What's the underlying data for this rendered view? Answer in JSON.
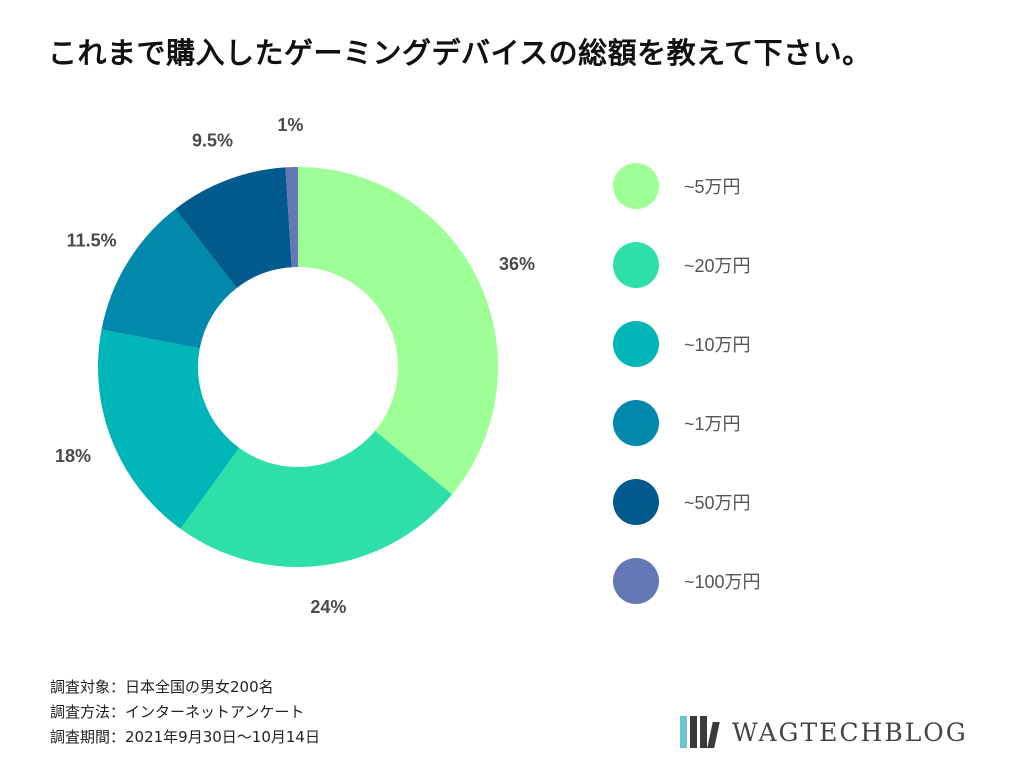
{
  "title": "これまで購入したゲーミングデバイスの総額を教えて下さい。",
  "chart_data": {
    "type": "pie",
    "style": "donut",
    "title": "これまで購入したゲーミングデバイスの総額を教えて下さい。",
    "slices": [
      {
        "label": "~5万円",
        "value": 36,
        "display": "36%",
        "color": "#9dff95"
      },
      {
        "label": "~20万円",
        "value": 24,
        "display": "24%",
        "color": "#2ee0a8"
      },
      {
        "label": "~10万円",
        "value": 18,
        "display": "18%",
        "color": "#00b5b8"
      },
      {
        "label": "~1万円",
        "value": 11.5,
        "display": "11.5%",
        "color": "#0088ad"
      },
      {
        "label": "~50万円",
        "value": 9.5,
        "display": "9.5%",
        "color": "#005a8d"
      },
      {
        "label": "~100万円",
        "value": 1,
        "display": "1%",
        "color": "#6378b4"
      }
    ],
    "legend_position": "right"
  },
  "footer": {
    "line1": "調査対象：日本全国の男女200名",
    "line2": "調査方法：インターネットアンケート",
    "line3": "調査期間：2021年9月30日〜10月14日"
  },
  "brand": {
    "name": "WAGTECHBLOG",
    "logo_colors": [
      "#6cc7cf",
      "#3a3a3a",
      "#3a3a3a",
      "#3a3a3a"
    ]
  }
}
